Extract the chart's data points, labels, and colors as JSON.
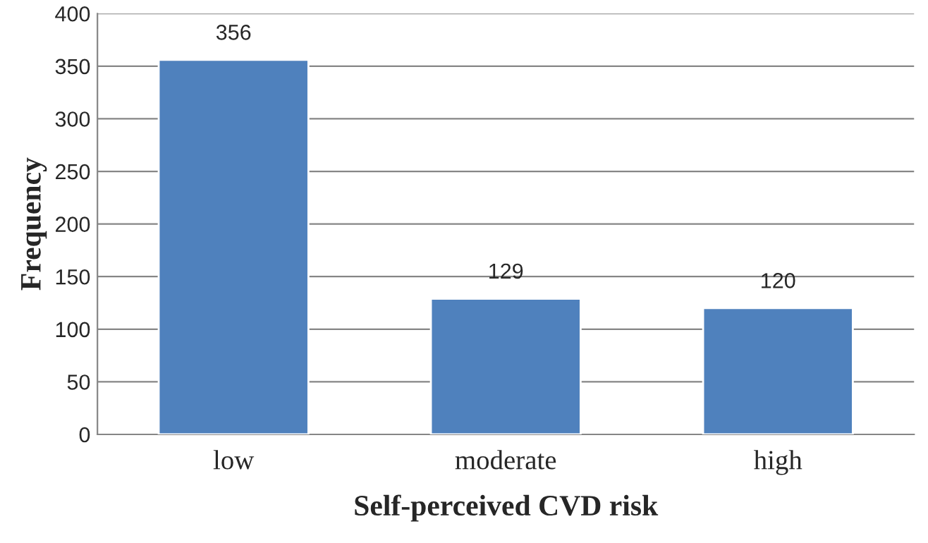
{
  "chart_data": {
    "type": "bar",
    "categories": [
      "low",
      "moderate",
      "high"
    ],
    "values": [
      356,
      129,
      120
    ],
    "color": "#4f81bd",
    "data_labels": true,
    "ylim": [
      0,
      400
    ],
    "yticks": [
      0,
      50,
      100,
      150,
      200,
      250,
      300,
      350,
      400
    ],
    "grid": "y",
    "xlabel": "Self-perceived CVD risk",
    "ylabel": "Frequency"
  }
}
